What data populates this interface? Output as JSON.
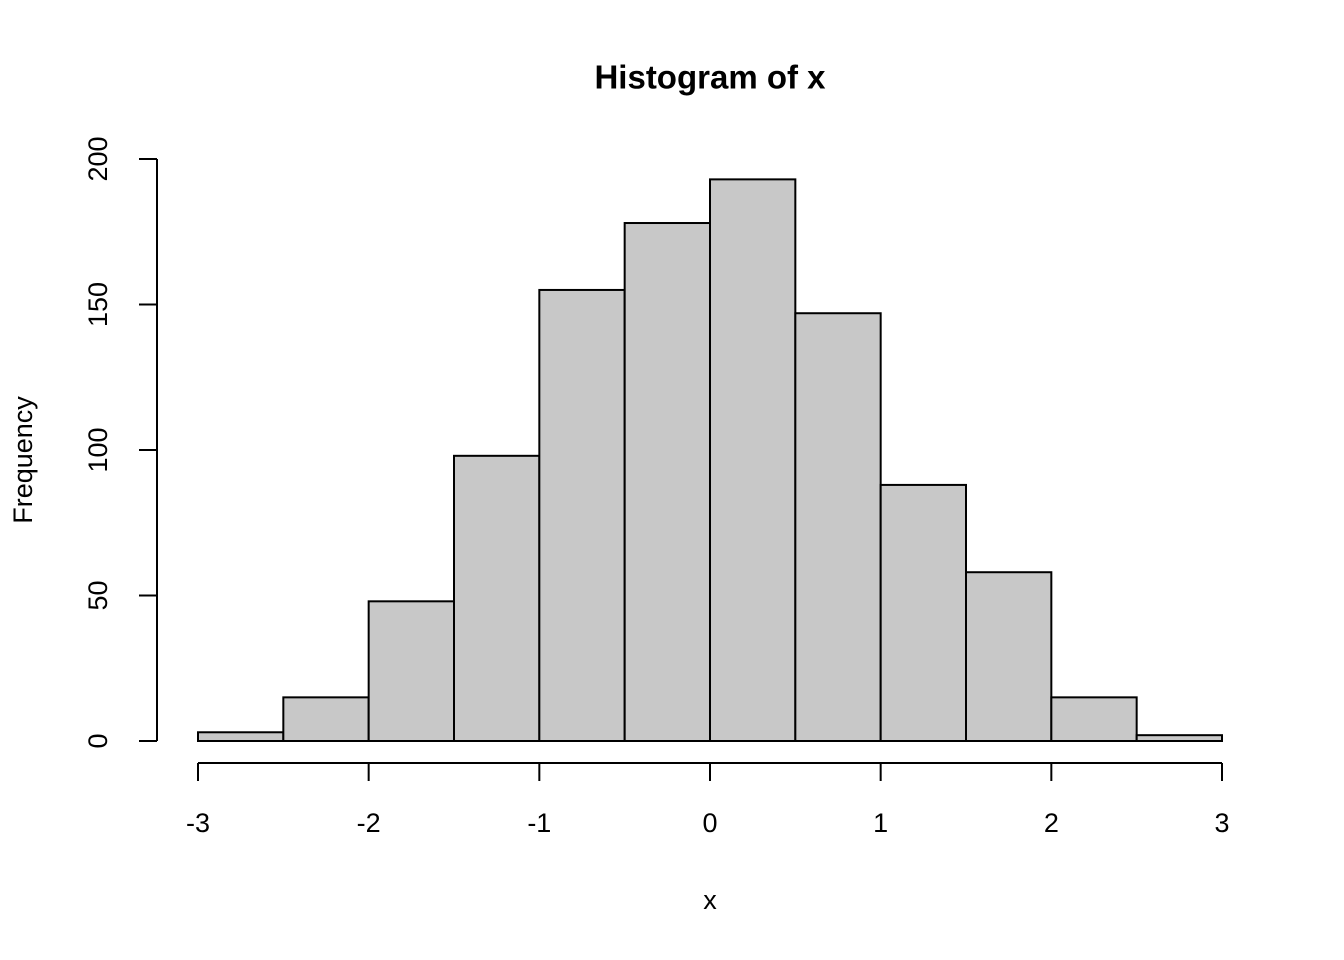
{
  "chart_data": {
    "type": "histogram",
    "title": "Histogram of x",
    "x_label": "x",
    "y_label": "Frequency",
    "bins": [
      -3,
      -2.5,
      -2,
      -1.5,
      -1,
      -0.5,
      0,
      0.5,
      1,
      1.5,
      2,
      2.5,
      3
    ],
    "values": [
      3,
      15,
      48,
      98,
      155,
      178,
      193,
      147,
      88,
      58,
      15,
      2
    ],
    "color": "#c8c8c8",
    "xlim": [
      -3,
      3
    ],
    "xticks": [
      -3,
      -2,
      -1,
      0,
      1,
      2,
      3
    ],
    "ylim": [
      0,
      200
    ],
    "yticks": [
      0,
      50,
      100,
      150,
      200
    ],
    "grid": false
  }
}
